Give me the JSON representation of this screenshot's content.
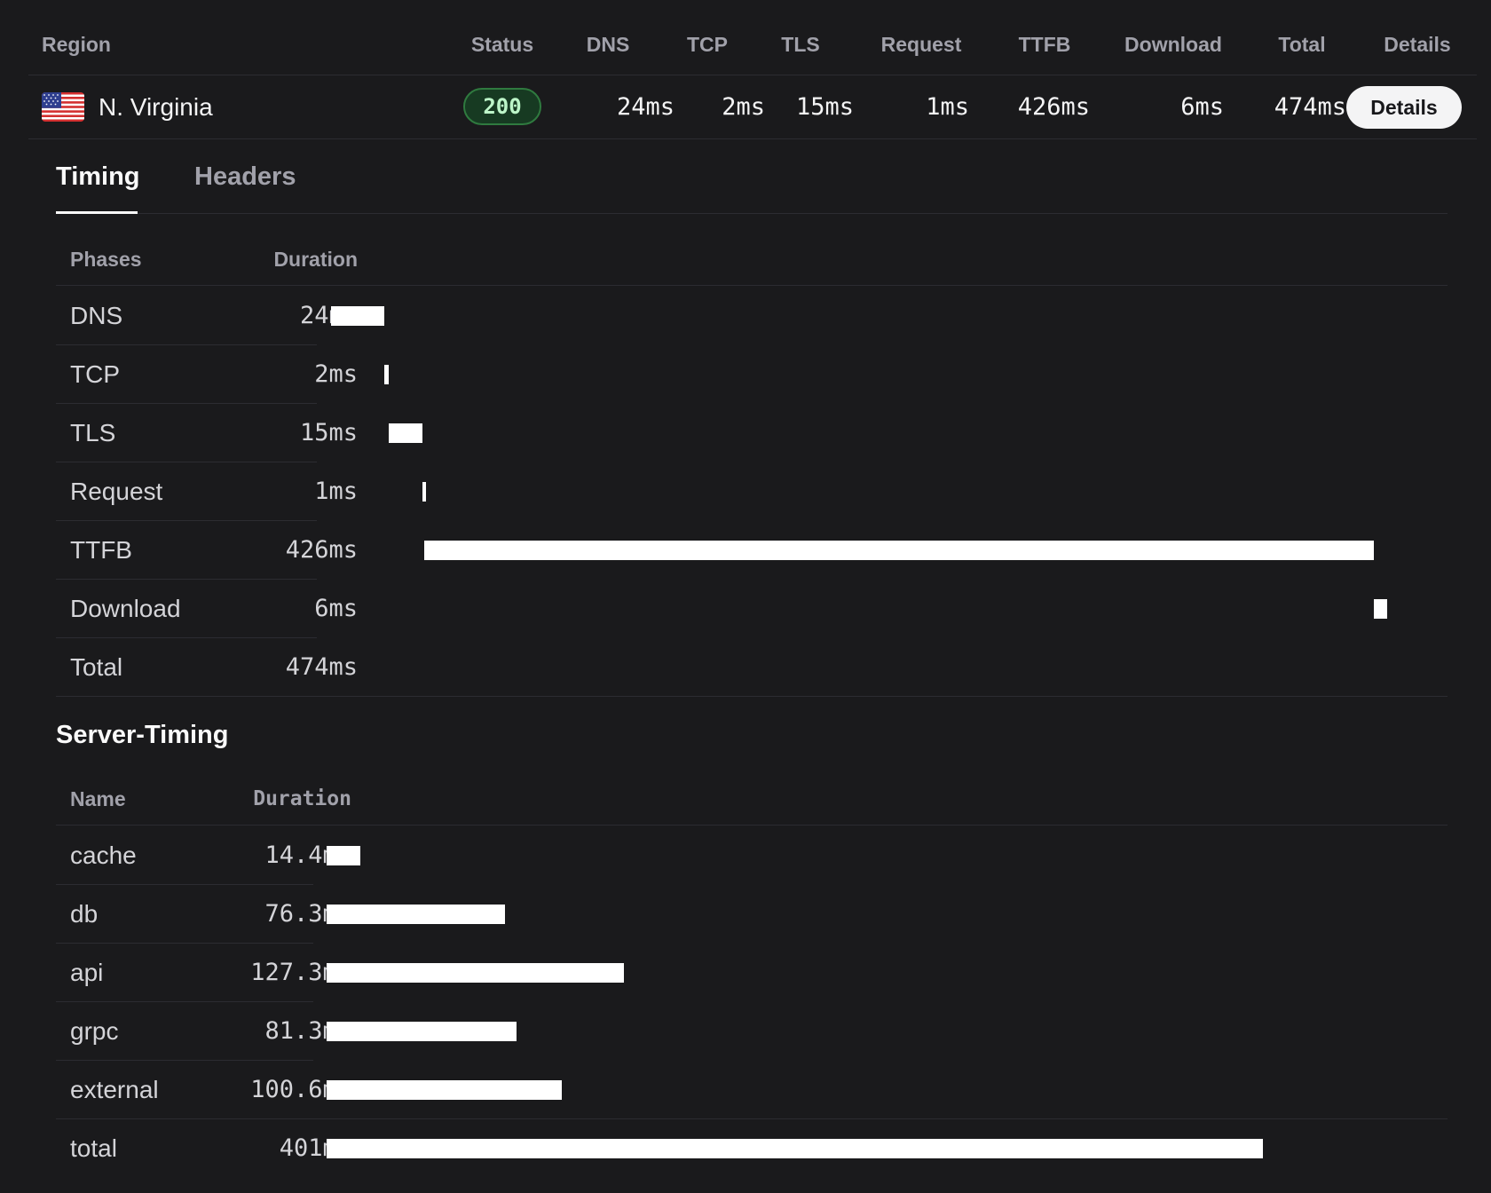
{
  "results_table": {
    "headers": {
      "region": "Region",
      "status": "Status",
      "dns": "DNS",
      "tcp": "TCP",
      "tls": "TLS",
      "request": "Request",
      "ttfb": "TTFB",
      "download": "Download",
      "total": "Total",
      "details": "Details"
    },
    "row": {
      "flag_icon": "us-flag-icon",
      "region": "N. Virginia",
      "status": "200",
      "dns": "24ms",
      "tcp": "2ms",
      "tls": "15ms",
      "request": "1ms",
      "ttfb": "426ms",
      "download": "6ms",
      "total": "474ms",
      "details_label": "Details"
    }
  },
  "tabs": [
    {
      "label": "Timing",
      "active": true
    },
    {
      "label": "Headers",
      "active": false
    }
  ],
  "timing": {
    "headers": {
      "phase": "Phases",
      "duration": "Duration"
    },
    "total_ms": 474,
    "phases": [
      {
        "name": "DNS",
        "duration": "24ms",
        "start_ms": 0,
        "ms": 24
      },
      {
        "name": "TCP",
        "duration": "2ms",
        "start_ms": 24,
        "ms": 2
      },
      {
        "name": "TLS",
        "duration": "15ms",
        "start_ms": 26,
        "ms": 15
      },
      {
        "name": "Request",
        "duration": "1ms",
        "start_ms": 41,
        "ms": 1
      },
      {
        "name": "TTFB",
        "duration": "426ms",
        "start_ms": 42,
        "ms": 426
      },
      {
        "name": "Download",
        "duration": "6ms",
        "start_ms": 468,
        "ms": 6
      }
    ],
    "total": {
      "name": "Total",
      "duration": "474ms"
    }
  },
  "server_timing": {
    "title": "Server-Timing",
    "headers": {
      "name": "Name",
      "duration": "Duration"
    },
    "max_ms": 401,
    "entries": [
      {
        "name": "cache",
        "duration": "14.4ms",
        "ms": 14.4
      },
      {
        "name": "db",
        "duration": "76.3ms",
        "ms": 76.3
      },
      {
        "name": "api",
        "duration": "127.3ms",
        "ms": 127.3
      },
      {
        "name": "grpc",
        "duration": "81.3ms",
        "ms": 81.3
      },
      {
        "name": "external",
        "duration": "100.6ms",
        "ms": 100.6
      },
      {
        "name": "total",
        "duration": "401ms",
        "ms": 401
      }
    ]
  },
  "colors": {
    "background": "#1a1a1c",
    "bar": "#ffffff",
    "status_ok_bg": "#173a22",
    "status_ok_border": "#2f7a3f",
    "status_ok_text": "#bdf5c8"
  }
}
